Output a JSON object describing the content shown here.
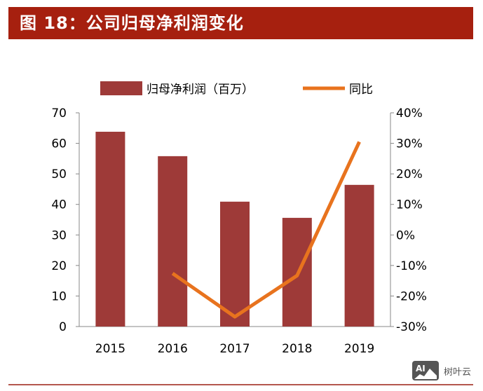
{
  "title": "图 18：公司归母净利润变化",
  "watermark": "树叶云",
  "chart_data": {
    "type": "bar+line",
    "categories": [
      "2015",
      "2016",
      "2017",
      "2018",
      "2019"
    ],
    "series": [
      {
        "name": "归母净利润（百万）",
        "type": "bar",
        "axis": "left",
        "color": "#9e3a38",
        "values": [
          63.8,
          55.8,
          40.9,
          35.6,
          46.4
        ]
      },
      {
        "name": "同比",
        "type": "line",
        "axis": "right",
        "color": "#e8731e",
        "values": [
          null,
          -12.6,
          -26.8,
          -13.3,
          30.5
        ]
      }
    ],
    "left_axis": {
      "ylim": [
        0,
        70
      ],
      "ticks": [
        "0",
        "10",
        "20",
        "30",
        "40",
        "50",
        "60",
        "70"
      ]
    },
    "right_axis": {
      "ylim": [
        -30,
        40
      ],
      "ticks": [
        "-30%",
        "-20%",
        "-10%",
        "0%",
        "10%",
        "20%",
        "30%",
        "40%"
      ]
    },
    "legend": "top",
    "grid": false
  }
}
